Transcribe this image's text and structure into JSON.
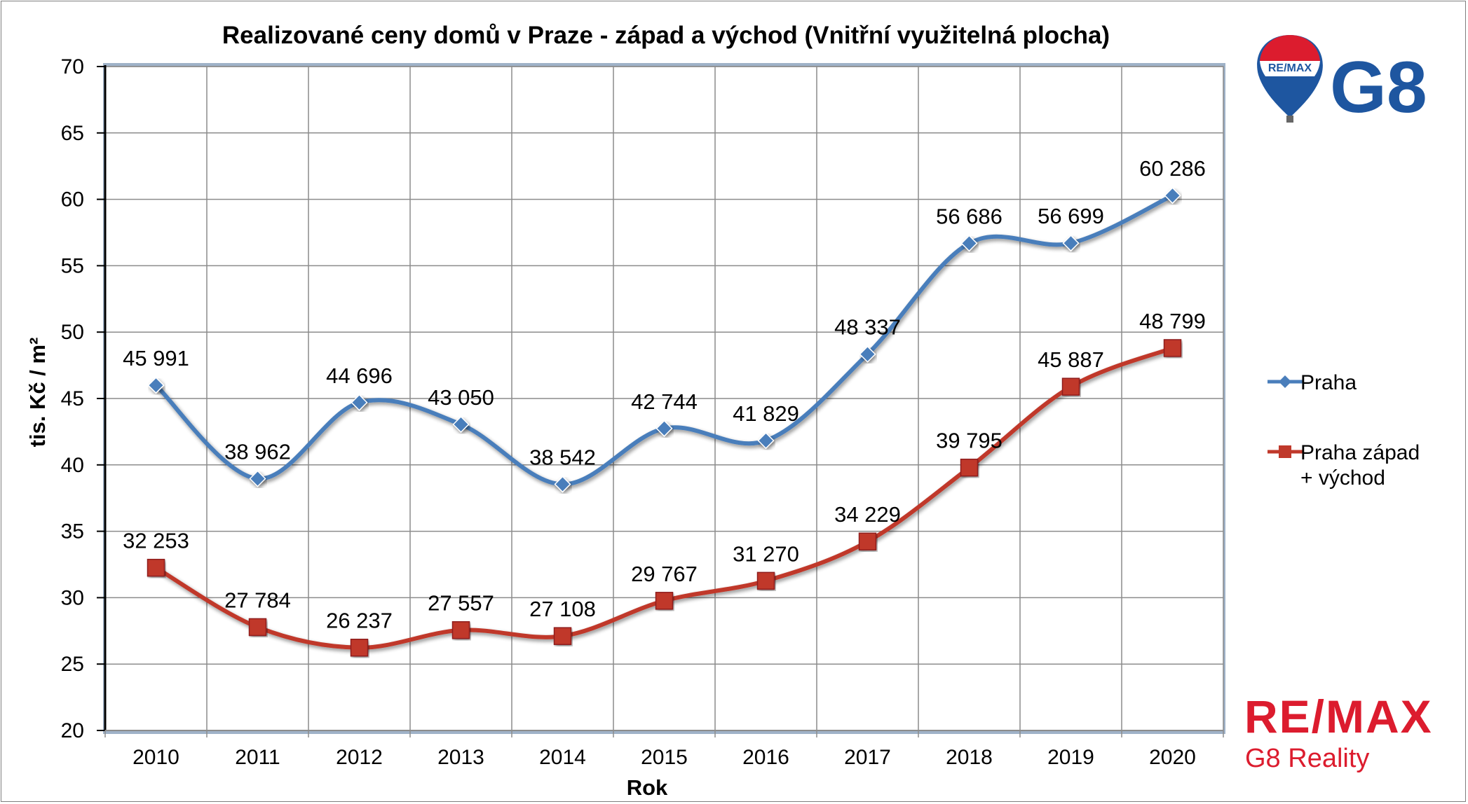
{
  "chart_data": {
    "type": "line",
    "title": "Realizované ceny domů v Praze - západ a východ (Vnitřní využitelná plocha)",
    "xlabel": "Rok",
    "ylabel": "tis. Kč / m²",
    "ylim": [
      20,
      70
    ],
    "yticks": [
      "20",
      "25",
      "30",
      "35",
      "40",
      "45",
      "50",
      "55",
      "60",
      "65",
      "70"
    ],
    "categories": [
      "2010",
      "2011",
      "2012",
      "2013",
      "2014",
      "2015",
      "2016",
      "2017",
      "2018",
      "2019",
      "2020"
    ],
    "grid": true,
    "legend_position": "right",
    "series": [
      {
        "name": "Praha",
        "color": "#4a7ebb",
        "marker": "diamond",
        "values": [
          45.991,
          38.962,
          44.696,
          43.05,
          38.542,
          42.744,
          41.829,
          48.337,
          56.686,
          56.699,
          60.286
        ],
        "labels": [
          "45 991",
          "38 962",
          "44 696",
          "43 050",
          "38 542",
          "42 744",
          "41 829",
          "48 337",
          "56 686",
          "56 699",
          "60 286"
        ]
      },
      {
        "name": "Praha západ + východ",
        "name_lines": [
          "Praha západ",
          "+ východ"
        ],
        "color": "#c0392b",
        "marker": "square",
        "values": [
          32.253,
          27.784,
          26.237,
          27.557,
          27.108,
          29.767,
          31.27,
          34.229,
          39.795,
          45.887,
          48.799
        ],
        "labels": [
          "32 253",
          "27 784",
          "26 237",
          "27 557",
          "27 108",
          "29 767",
          "31 270",
          "34 229",
          "39 795",
          "45 887",
          "48 799"
        ]
      }
    ]
  },
  "branding": {
    "logo_top_text": "G8",
    "balloon_text": "RE/MAX",
    "bottom_brand": "RE/MAX",
    "bottom_sub": "G8 Reality",
    "brand_color": "#dc1c2e",
    "logo_blue": "#1e56a0"
  }
}
